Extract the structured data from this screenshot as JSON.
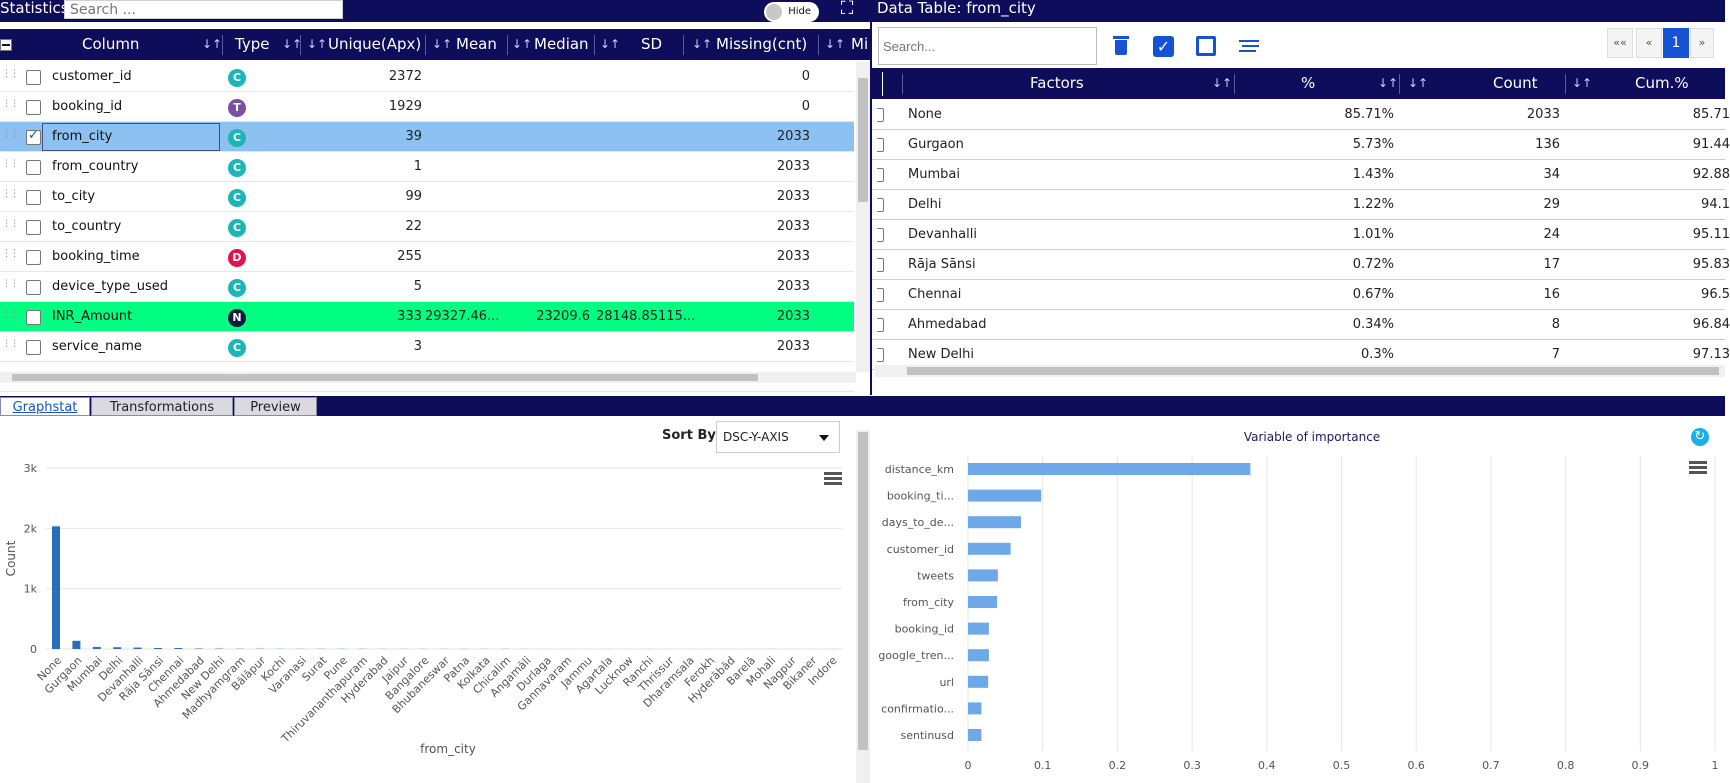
{
  "statistics": {
    "title": "Statistics",
    "search_placeholder": "Search ...",
    "hide_label": "Hide",
    "columns": [
      "Column",
      "Type",
      "Unique(Apx)",
      "Mean",
      "Median",
      "SD",
      "Missing(cnt)",
      "Mi"
    ],
    "rows": [
      {
        "name": "customer_id",
        "type": "C",
        "unique": "2372",
        "mean": "",
        "median": "",
        "sd": "",
        "missing": "0",
        "checked": false,
        "state": ""
      },
      {
        "name": "booking_id",
        "type": "T",
        "unique": "1929",
        "mean": "",
        "median": "",
        "sd": "",
        "missing": "0",
        "checked": false,
        "state": ""
      },
      {
        "name": "from_city",
        "type": "C",
        "unique": "39",
        "mean": "",
        "median": "",
        "sd": "",
        "missing": "2033",
        "checked": true,
        "state": "selected"
      },
      {
        "name": "from_country",
        "type": "C",
        "unique": "1",
        "mean": "",
        "median": "",
        "sd": "",
        "missing": "2033",
        "checked": false,
        "state": ""
      },
      {
        "name": "to_city",
        "type": "C",
        "unique": "99",
        "mean": "",
        "median": "",
        "sd": "",
        "missing": "2033",
        "checked": false,
        "state": ""
      },
      {
        "name": "to_country",
        "type": "C",
        "unique": "22",
        "mean": "",
        "median": "",
        "sd": "",
        "missing": "2033",
        "checked": false,
        "state": ""
      },
      {
        "name": "booking_time",
        "type": "D",
        "unique": "255",
        "mean": "",
        "median": "",
        "sd": "",
        "missing": "2033",
        "checked": false,
        "state": ""
      },
      {
        "name": "device_type_used",
        "type": "C",
        "unique": "5",
        "mean": "",
        "median": "",
        "sd": "",
        "missing": "2033",
        "checked": false,
        "state": ""
      },
      {
        "name": "INR_Amount",
        "type": "N",
        "unique": "333",
        "mean": "29327.46...",
        "median": "23209.6",
        "sd": "28148.85115...",
        "missing": "2033",
        "checked": false,
        "state": "highlight"
      },
      {
        "name": "service_name",
        "type": "C",
        "unique": "3",
        "mean": "",
        "median": "",
        "sd": "",
        "missing": "2033",
        "checked": false,
        "state": ""
      }
    ],
    "type_colors": {
      "C": "#1cb6b8",
      "T": "#7b4fa3",
      "D": "#e0134d",
      "N": "#111c3d"
    }
  },
  "data_table": {
    "title": "Data Table: from_city",
    "search_placeholder": "Search...",
    "pager": [
      "««",
      "«",
      "1",
      "»"
    ],
    "columns": [
      "Factors",
      "%",
      "Count",
      "Cum.%"
    ],
    "rows": [
      {
        "factor": "None",
        "pct": "85.71%",
        "count": "2033",
        "cum": "85.71"
      },
      {
        "factor": "Gurgaon",
        "pct": "5.73%",
        "count": "136",
        "cum": "91.44"
      },
      {
        "factor": "Mumbai",
        "pct": "1.43%",
        "count": "34",
        "cum": "92.88"
      },
      {
        "factor": "Delhi",
        "pct": "1.22%",
        "count": "29",
        "cum": "94.1"
      },
      {
        "factor": "Devanhalli",
        "pct": "1.01%",
        "count": "24",
        "cum": "95.11"
      },
      {
        "factor": "Rāja Sānsi",
        "pct": "0.72%",
        "count": "17",
        "cum": "95.83"
      },
      {
        "factor": "Chennai",
        "pct": "0.67%",
        "count": "16",
        "cum": "96.5"
      },
      {
        "factor": "Ahmedabad",
        "pct": "0.34%",
        "count": "8",
        "cum": "96.84"
      },
      {
        "factor": "New Delhi",
        "pct": "0.3%",
        "count": "7",
        "cum": "97.13"
      }
    ]
  },
  "tabs": [
    "Graphstat",
    "Transformations",
    "Preview"
  ],
  "graphstat": {
    "sort_label": "Sort By:",
    "sort_value": "DSC-Y-AXIS"
  },
  "importance": {
    "refresh_icon": "refresh-icon"
  },
  "chart_data": [
    {
      "type": "bar",
      "title": "",
      "xlabel": "from_city",
      "ylabel": "Count",
      "ylim": [
        0,
        3000
      ],
      "yticks": [
        "0",
        "1k",
        "2k",
        "3k"
      ],
      "categories": [
        "None",
        "Gurgaon",
        "Mumbai",
        "Delhi",
        "Devanhalli",
        "Rāja Sānsi",
        "Chennai",
        "Ahmedabad",
        "New Delhi",
        "Madhyamgram",
        "Bālāpur",
        "Kochi",
        "Varanasi",
        "Surat",
        "Pune",
        "Thiruvananthapuram",
        "Hyderabad",
        "Jaipur",
        "Bangalore",
        "Bhubaneswar",
        "Patna",
        "Kolkata",
        "Chicalim",
        "Angamāli",
        "Durlaga",
        "Gannavaram",
        "Jammu",
        "Agartala",
        "Lucknow",
        "Ranchi",
        "Thrissur",
        "Dharamsala",
        "Ferokh",
        "Hyderābād",
        "Barelā",
        "Mohali",
        "Nagpur",
        "Bikaner",
        "Indore"
      ],
      "values": [
        2033,
        136,
        34,
        29,
        24,
        17,
        16,
        8,
        7,
        4,
        4,
        3,
        3,
        3,
        3,
        3,
        2,
        2,
        2,
        2,
        2,
        2,
        2,
        1,
        1,
        1,
        1,
        1,
        1,
        1,
        1,
        1,
        1,
        1,
        1,
        1,
        1,
        1,
        1
      ],
      "color": "#2a6ebb",
      "grid": true
    },
    {
      "type": "bar",
      "orientation": "horizontal",
      "title": "Variable of importance",
      "categories": [
        "distance_km",
        "booking_ti...",
        "days_to_de...",
        "customer_id",
        "tweets",
        "from_city",
        "booking_id",
        "google_tren...",
        "url",
        "confirmatio...",
        "sentinusd"
      ],
      "values": [
        0.378,
        0.098,
        0.071,
        0.057,
        0.04,
        0.039,
        0.028,
        0.028,
        0.027,
        0.018,
        0.018
      ],
      "xlim": [
        0,
        1
      ],
      "xticks": [
        "0",
        "0.1",
        "0.2",
        "0.3",
        "0.4",
        "0.5",
        "0.6",
        "0.7",
        "0.8",
        "0.9",
        "1"
      ],
      "color": "#6ea8e8",
      "grid": true
    }
  ]
}
